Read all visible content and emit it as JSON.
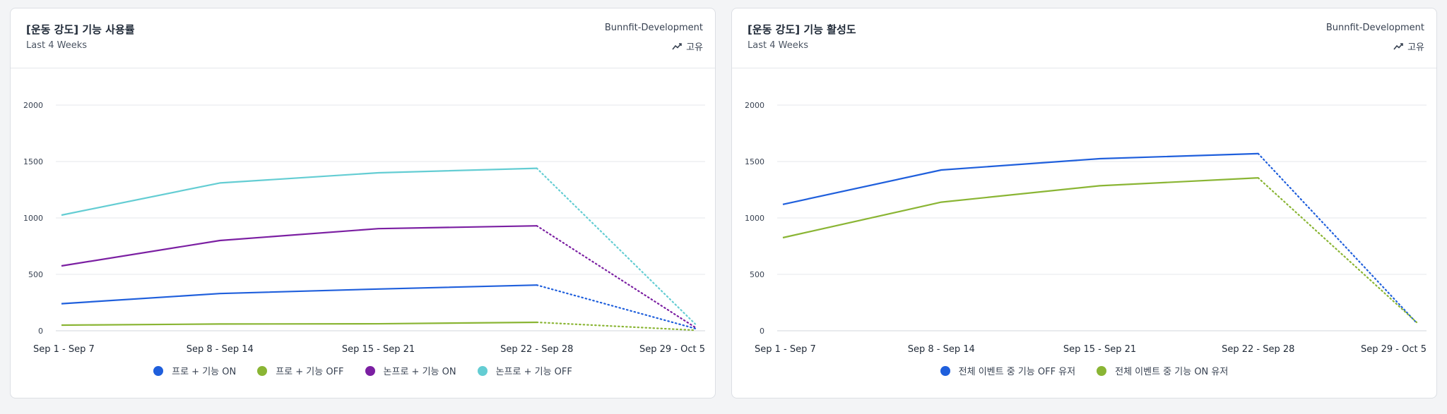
{
  "cards": [
    {
      "title": "[운동 강도] 기능 사용률",
      "subtitle": "Last 4 Weeks",
      "project": "Bunnfit-Development",
      "metric_label": "고유",
      "metric_icon": "trend-line-icon"
    },
    {
      "title": "[운동 강도] 기능 활성도",
      "subtitle": "Last 4 Weeks",
      "project": "Bunnfit-Development",
      "metric_label": "고유",
      "metric_icon": "trend-line-icon"
    }
  ],
  "chart_data": [
    {
      "type": "line",
      "x": [
        "Sep 1 - Sep 7",
        "Sep 8 - Sep 14",
        "Sep 15 - Sep 21",
        "Sep 22 - Sep 28",
        "Sep 29 - Oct 5"
      ],
      "ylim": [
        0,
        2000
      ],
      "yticks": [
        0,
        500,
        1000,
        1500,
        2000
      ],
      "grid": true,
      "legend_position": "bottom",
      "incomplete_last_period": true,
      "series": [
        {
          "name": "프로 + 기능 ON",
          "color": "#1f5fdc",
          "values": [
            240,
            330,
            370,
            405,
            20
          ]
        },
        {
          "name": "프로 + 기능 OFF",
          "color": "#8ab534",
          "values": [
            50,
            60,
            62,
            75,
            5
          ]
        },
        {
          "name": "논프로 + 기능 ON",
          "color": "#7b1fa2",
          "values": [
            575,
            800,
            905,
            930,
            30
          ]
        },
        {
          "name": "논프로 + 기능 OFF",
          "color": "#64cdd3",
          "values": [
            1025,
            1310,
            1400,
            1440,
            60
          ]
        }
      ]
    },
    {
      "type": "line",
      "x": [
        "Sep 1 - Sep 7",
        "Sep 8 - Sep 14",
        "Sep 15 - Sep 21",
        "Sep 22 - Sep 28",
        "Sep 29 - Oct 5"
      ],
      "ylim": [
        0,
        2000
      ],
      "yticks": [
        0,
        500,
        1000,
        1500,
        2000
      ],
      "grid": true,
      "legend_position": "bottom",
      "incomplete_last_period": true,
      "series": [
        {
          "name": "전체 이벤트 중 기능 OFF 유저",
          "color": "#1f5fdc",
          "values": [
            1120,
            1425,
            1525,
            1570,
            70
          ]
        },
        {
          "name": "전체 이벤트 중 기능 ON 유저",
          "color": "#8ab534",
          "values": [
            825,
            1140,
            1285,
            1355,
            75
          ]
        }
      ]
    }
  ]
}
